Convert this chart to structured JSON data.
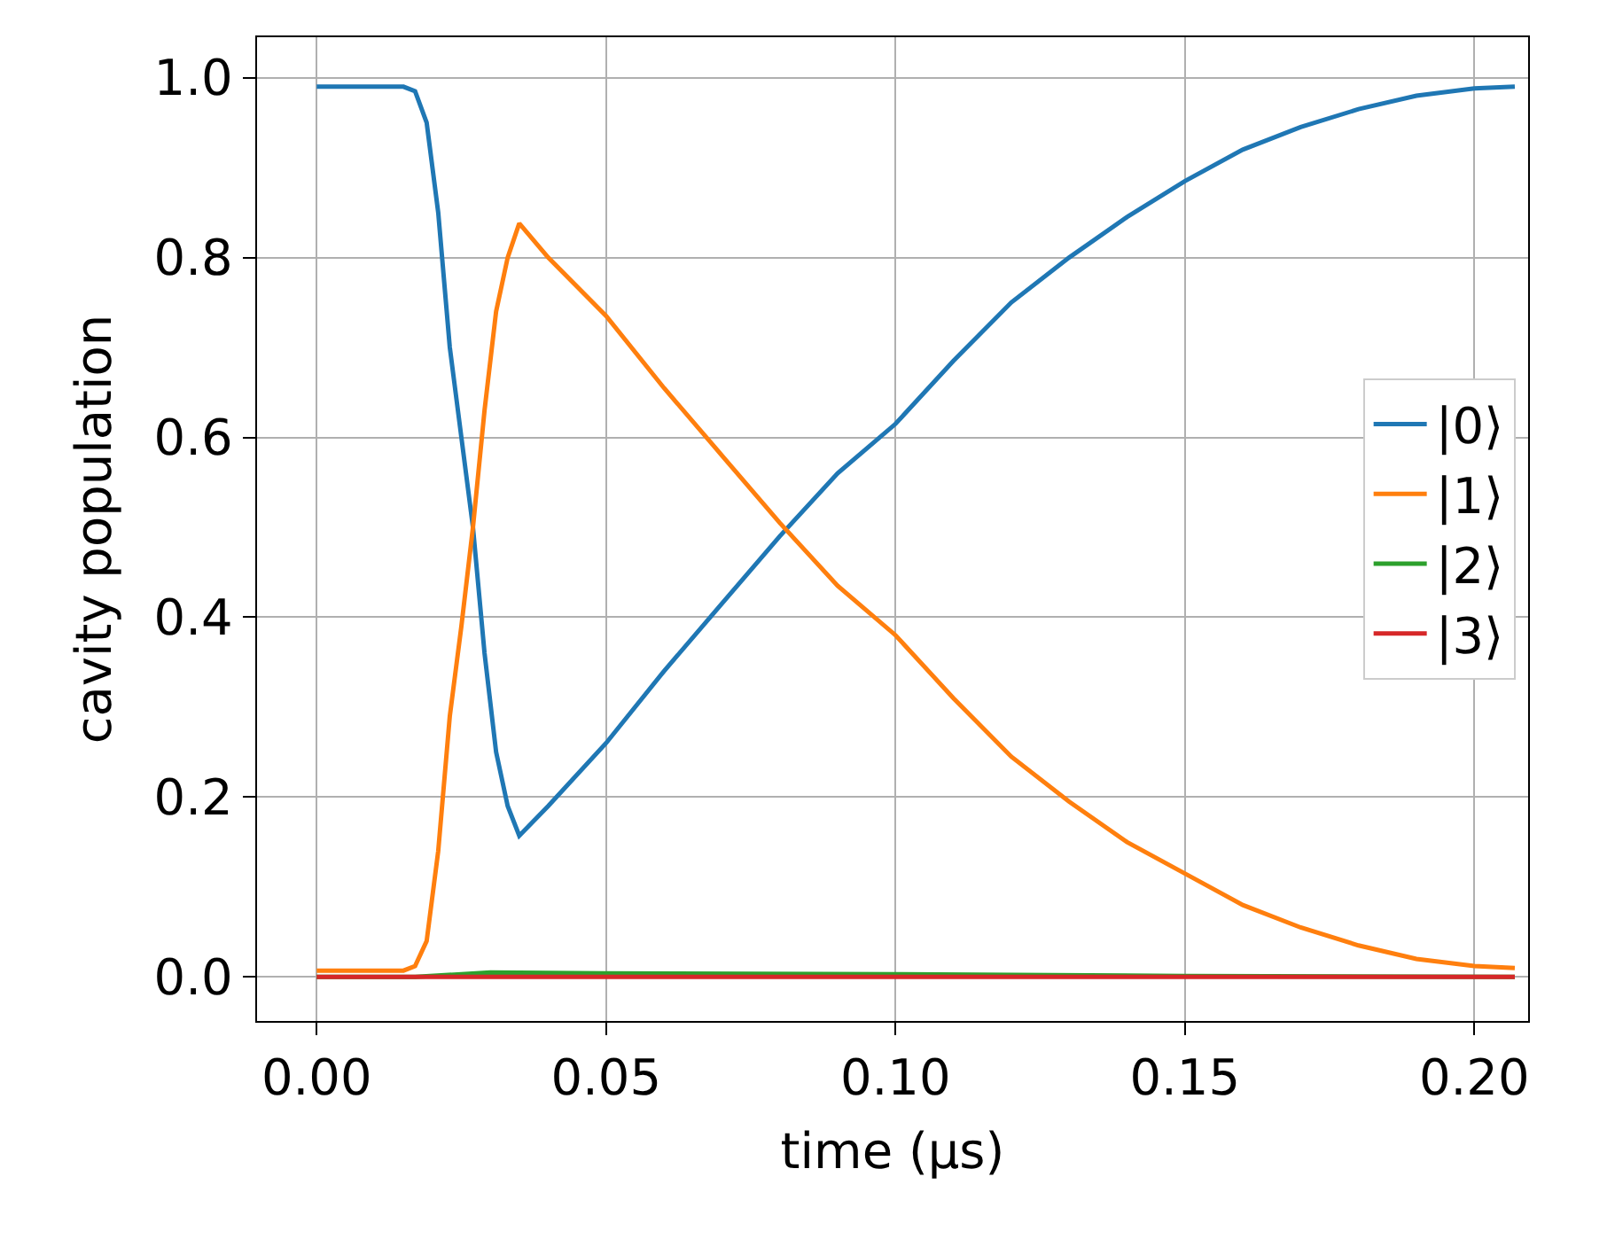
{
  "chart_data": {
    "type": "line",
    "xlabel": "time (μs)",
    "ylabel": "cavity population",
    "xlim": [
      -0.0103,
      0.2093
    ],
    "ylim": [
      -0.049,
      1.045
    ],
    "xticks": [
      {
        "value": 0,
        "label": "0.00"
      },
      {
        "value": 0.05,
        "label": "0.05"
      },
      {
        "value": 0.1,
        "label": "0.10"
      },
      {
        "value": 0.15,
        "label": "0.15"
      },
      {
        "value": 0.2,
        "label": "0.20"
      }
    ],
    "yticks": [
      {
        "value": 0,
        "label": "0.0"
      },
      {
        "value": 0.2,
        "label": "0.2"
      },
      {
        "value": 0.4,
        "label": "0.4"
      },
      {
        "value": 0.6,
        "label": "0.6"
      },
      {
        "value": 0.8,
        "label": "0.8"
      },
      {
        "value": 1,
        "label": "1.0"
      }
    ],
    "grid": true,
    "legend": "right",
    "marker": "none",
    "line_style": "solid",
    "x": [
      0,
      0.01,
      0.015,
      0.017,
      0.019,
      0.021,
      0.023,
      0.025,
      0.027,
      0.029,
      0.031,
      0.033,
      0.035,
      0.04,
      0.05,
      0.06,
      0.07,
      0.08,
      0.09,
      0.1,
      0.11,
      0.12,
      0.13,
      0.14,
      0.15,
      0.16,
      0.17,
      0.18,
      0.19,
      0.2,
      0.207
    ],
    "series": [
      {
        "name": "|0⟩",
        "color": "#1f77b4",
        "values": [
          0.99,
          0.99,
          0.99,
          0.985,
          0.95,
          0.85,
          0.7,
          0.6,
          0.5,
          0.36,
          0.25,
          0.19,
          0.157,
          0.19,
          0.26,
          0.34,
          0.415,
          0.49,
          0.56,
          0.615,
          0.685,
          0.75,
          0.8,
          0.845,
          0.885,
          0.92,
          0.945,
          0.965,
          0.98,
          0.988,
          0.99
        ]
      },
      {
        "name": "|1⟩",
        "color": "#ff7f0e",
        "values": [
          0.007,
          0.007,
          0.007,
          0.012,
          0.04,
          0.14,
          0.29,
          0.39,
          0.5,
          0.63,
          0.74,
          0.8,
          0.838,
          0.8,
          0.735,
          0.655,
          0.58,
          0.505,
          0.435,
          0.38,
          0.31,
          0.245,
          0.195,
          0.15,
          0.115,
          0.08,
          0.055,
          0.035,
          0.02,
          0.012,
          0.01
        ]
      },
      {
        "name": "|2⟩",
        "color": "#2ca02c",
        "x": [
          0,
          0.017,
          0.025,
          0.03,
          0.05,
          0.1,
          0.15,
          0.207
        ],
        "values": [
          0,
          0,
          0.003,
          0.005,
          0.004,
          0.003,
          0.001,
          0
        ]
      },
      {
        "name": "|3⟩",
        "color": "#d62728",
        "x": [
          0,
          0.207
        ],
        "values": [
          0,
          0
        ]
      }
    ]
  }
}
